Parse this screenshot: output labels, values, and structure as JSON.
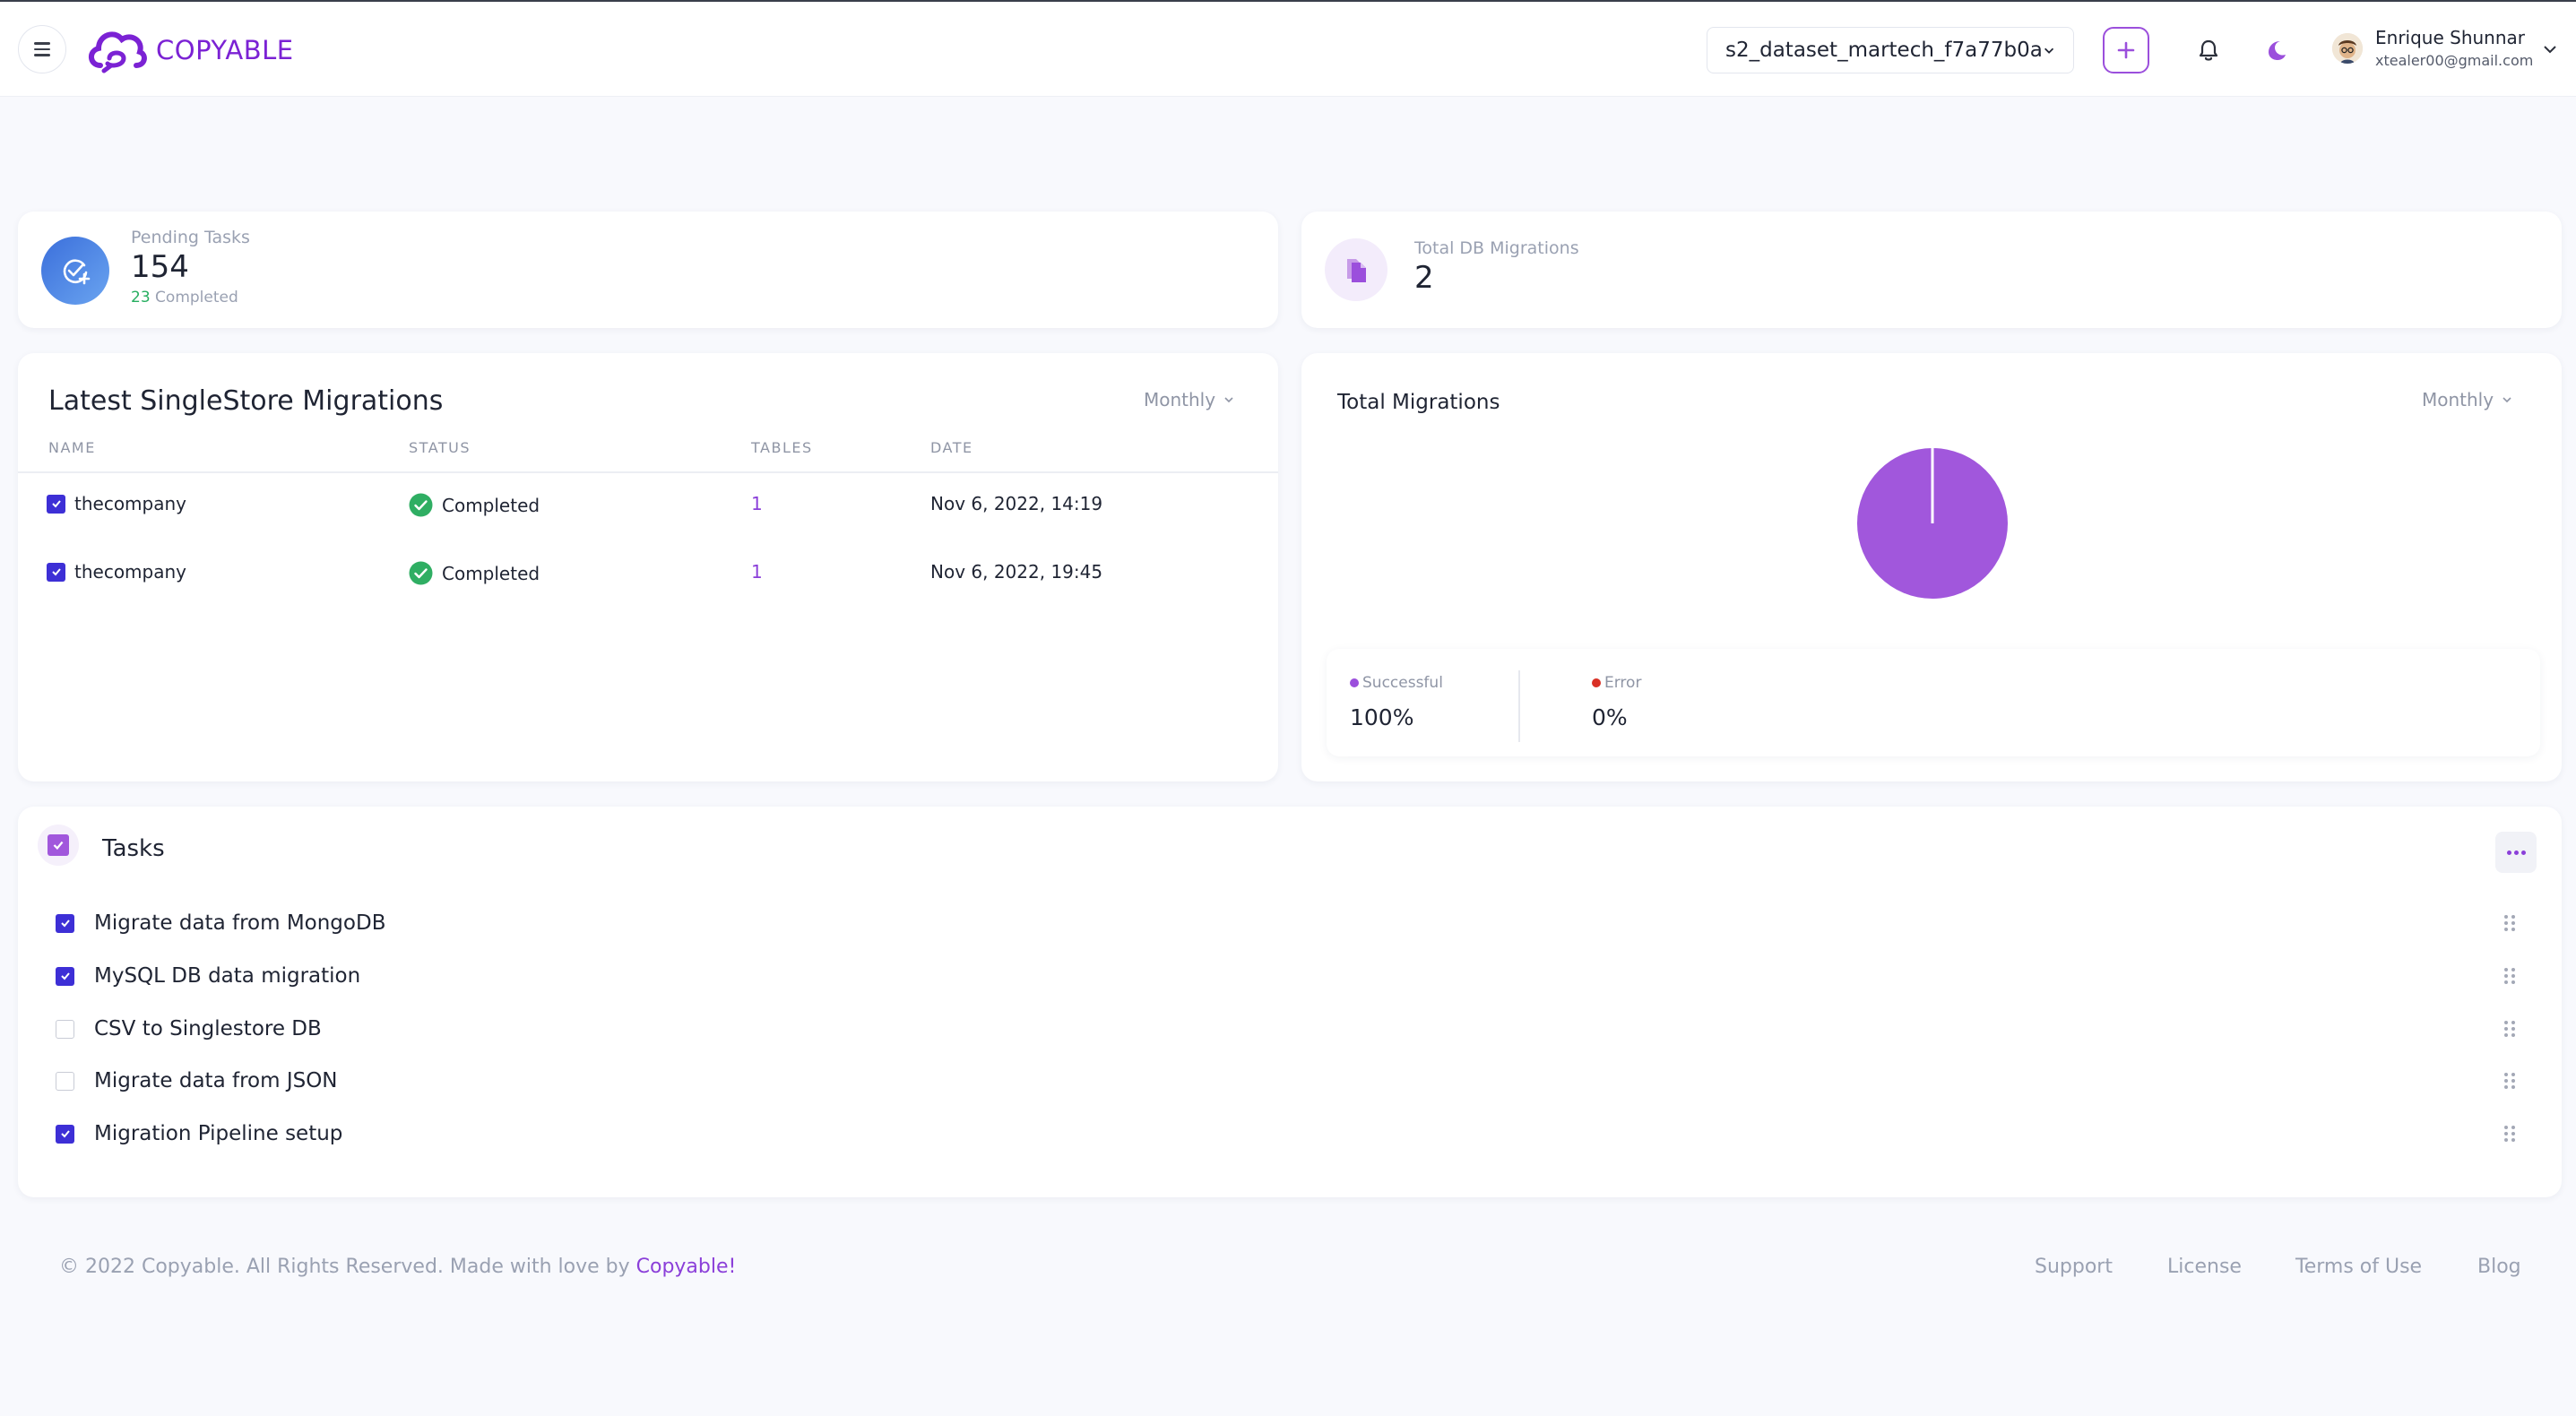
{
  "brand": {
    "name": "COPYABLE",
    "color": "#7b22d4"
  },
  "header": {
    "dataset_select": "s2_dataset_martech_f7a77b0a",
    "user": {
      "name": "Enrique Shunnar",
      "email": "xtealer00@gmail.com"
    },
    "icons": [
      "menu-icon",
      "plus-icon",
      "bell-icon",
      "moon-icon",
      "chevron-down-icon"
    ]
  },
  "stats": {
    "pending": {
      "label": "Pending Tasks",
      "value": "154",
      "completed_count": "23",
      "completed_label": "Completed"
    },
    "migrations": {
      "label": "Total DB Migrations",
      "value": "2"
    }
  },
  "latest": {
    "title": "Latest SingleStore Migrations",
    "period": "Monthly",
    "columns": [
      "NAME",
      "STATUS",
      "TABLES",
      "DATE"
    ],
    "rows": [
      {
        "name": "thecompany",
        "status": "Completed",
        "tables": "1",
        "date": "Nov 6, 2022, 14:19"
      },
      {
        "name": "thecompany",
        "status": "Completed",
        "tables": "1",
        "date": "Nov 6, 2022, 19:45"
      }
    ]
  },
  "total_migrations": {
    "title": "Total Migrations",
    "period": "Monthly",
    "legend": {
      "successful": {
        "label": "Successful",
        "value": "100%",
        "color": "#9b4fdc"
      },
      "error": {
        "label": "Error",
        "value": "0%",
        "color": "#d93025"
      }
    }
  },
  "chart_data": {
    "type": "pie",
    "title": "Total Migrations",
    "categories": [
      "Successful",
      "Error"
    ],
    "values": [
      100,
      0
    ],
    "colors": [
      "#a157dc",
      "#d93025"
    ]
  },
  "tasks": {
    "title": "Tasks",
    "items": [
      {
        "label": "Migrate data from MongoDB",
        "checked": true
      },
      {
        "label": "MySQL DB data migration",
        "checked": true
      },
      {
        "label": "CSV to Singlestore DB",
        "checked": false
      },
      {
        "label": "Migrate data from JSON",
        "checked": false
      },
      {
        "label": "Migration Pipeline setup",
        "checked": true
      }
    ]
  },
  "footer": {
    "copyright": "© 2022  Copyable. All Rights Reserved. Made with love by",
    "brand_link": "Copyable!",
    "links": [
      "Support",
      "License",
      "Terms of Use",
      "Blog"
    ]
  }
}
